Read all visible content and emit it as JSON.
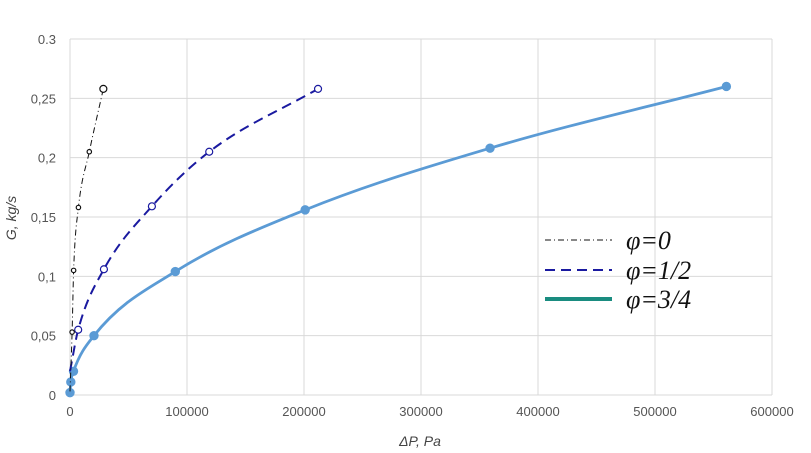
{
  "chart_data": {
    "type": "line",
    "title": "",
    "xlabel": "ΔP, Pa",
    "ylabel": "G, kg/s",
    "xlim": [
      0,
      600000
    ],
    "ylim": [
      0,
      0.3
    ],
    "x_ticks": [
      {
        "value": 0,
        "label": "0"
      },
      {
        "value": 100000,
        "label": "100000"
      },
      {
        "value": 200000,
        "label": "200000"
      },
      {
        "value": 300000,
        "label": "300000"
      },
      {
        "value": 400000,
        "label": "400000"
      },
      {
        "value": 500000,
        "label": "500000"
      },
      {
        "value": 600000,
        "label": "600000"
      }
    ],
    "y_ticks": [
      {
        "value": 0,
        "label": "0"
      },
      {
        "value": 0.05,
        "label": "0,05"
      },
      {
        "value": 0.1,
        "label": "0,1"
      },
      {
        "value": 0.15,
        "label": "0,15"
      },
      {
        "value": 0.2,
        "label": "0,2"
      },
      {
        "value": 0.25,
        "label": "0,25"
      },
      {
        "value": 0.3,
        "label": "0.3"
      }
    ],
    "grid": true,
    "legend_position": "right",
    "series": [
      {
        "name": "φ=0",
        "color": "#111111",
        "line_style": "dash-dot",
        "marker": "open-circle",
        "x": [
          0,
          1800,
          3100,
          7200,
          16500,
          28500
        ],
        "y": [
          0.003,
          0.053,
          0.105,
          0.158,
          0.205,
          0.258
        ]
      },
      {
        "name": "φ=1/2",
        "color": "#1a1aa0",
        "line_style": "dashed",
        "marker": "open-circle",
        "x": [
          0,
          7000,
          29000,
          70000,
          119000,
          212000
        ],
        "y": [
          0.02,
          0.055,
          0.106,
          0.159,
          0.205,
          0.258
        ]
      },
      {
        "name": "φ=3/4",
        "color": "#5b9bd5",
        "legend_color": "#1a8c80",
        "line_style": "solid",
        "marker": "filled-circle",
        "x": [
          0,
          700,
          3000,
          20500,
          90000,
          201000,
          359000,
          561000
        ],
        "y": [
          0.002,
          0.011,
          0.02,
          0.05,
          0.104,
          0.156,
          0.208,
          0.26
        ]
      }
    ]
  }
}
